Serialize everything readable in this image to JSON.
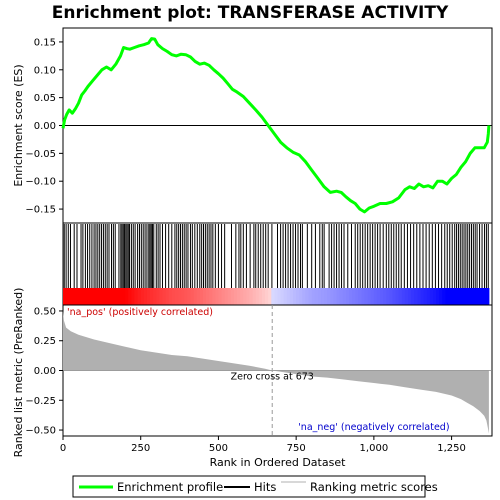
{
  "chart_data": {
    "type": "line",
    "title": "Enrichment plot: TRANSFERASE ACTIVITY",
    "xlabel": "Rank in Ordered Dataset",
    "xlim": [
      0,
      1380
    ],
    "xticks": [
      0,
      250,
      500,
      750,
      1000,
      1250
    ],
    "xtick_labels": [
      "0",
      "250",
      "500",
      "750",
      "1,000",
      "1,250"
    ],
    "panels": {
      "enrichment": {
        "ylabel": "Enrichment score (ES)",
        "ylim": [
          -0.175,
          0.175
        ],
        "yticks": [
          -0.15,
          -0.1,
          -0.05,
          0.0,
          0.05,
          0.1,
          0.15
        ],
        "ytick_labels": [
          "−0.15",
          "−0.10",
          "−0.05",
          "0.00",
          "0.05",
          "0.10",
          "0.15"
        ],
        "series": [
          {
            "name": "Enrichment profile",
            "color": "#00ff00",
            "x": [
              0,
              5,
              12,
              20,
              30,
              40,
              50,
              60,
              70,
              80,
              95,
              110,
              125,
              140,
              155,
              170,
              185,
              195,
              205,
              215,
              230,
              245,
              260,
              275,
              285,
              295,
              305,
              320,
              335,
              350,
              365,
              380,
              395,
              410,
              425,
              440,
              455,
              470,
              485,
              500,
              515,
              530,
              545,
              560,
              580,
              600,
              620,
              640,
              660,
              680,
              700,
              720,
              740,
              760,
              780,
              800,
              820,
              840,
              860,
              880,
              895,
              910,
              925,
              940,
              955,
              970,
              985,
              1000,
              1020,
              1040,
              1060,
              1080,
              1100,
              1115,
              1130,
              1145,
              1160,
              1175,
              1190,
              1205,
              1220,
              1235,
              1250,
              1265,
              1280,
              1295,
              1310,
              1325,
              1340,
              1355,
              1365,
              1368,
              1370
            ],
            "y": [
              -0.005,
              0.01,
              0.02,
              0.028,
              0.022,
              0.03,
              0.04,
              0.055,
              0.062,
              0.07,
              0.08,
              0.09,
              0.1,
              0.105,
              0.1,
              0.11,
              0.125,
              0.14,
              0.138,
              0.137,
              0.14,
              0.143,
              0.145,
              0.148,
              0.156,
              0.155,
              0.145,
              0.138,
              0.133,
              0.127,
              0.125,
              0.128,
              0.127,
              0.123,
              0.115,
              0.11,
              0.112,
              0.108,
              0.1,
              0.093,
              0.085,
              0.075,
              0.065,
              0.06,
              0.052,
              0.04,
              0.028,
              0.015,
              0.0,
              -0.015,
              -0.03,
              -0.04,
              -0.048,
              -0.053,
              -0.065,
              -0.08,
              -0.095,
              -0.11,
              -0.12,
              -0.118,
              -0.12,
              -0.128,
              -0.135,
              -0.14,
              -0.15,
              -0.155,
              -0.148,
              -0.145,
              -0.14,
              -0.14,
              -0.137,
              -0.13,
              -0.115,
              -0.11,
              -0.113,
              -0.105,
              -0.11,
              -0.108,
              -0.112,
              -0.1,
              -0.1,
              -0.105,
              -0.095,
              -0.088,
              -0.075,
              -0.065,
              -0.05,
              -0.04,
              -0.04,
              -0.04,
              -0.03,
              -0.015,
              0.0
            ]
          }
        ]
      },
      "hits": {
        "name": "Hits",
        "positions": [
          4,
          10,
          17,
          24,
          36,
          45,
          58,
          64,
          72,
          79,
          86,
          93,
          100,
          106,
          112,
          118,
          124,
          130,
          136,
          142,
          148,
          156,
          162,
          168,
          180,
          186,
          190,
          194,
          198,
          202,
          206,
          210,
          214,
          220,
          226,
          232,
          240,
          246,
          252,
          258,
          264,
          270,
          276,
          280,
          284,
          288,
          292,
          300,
          306,
          312,
          320,
          330,
          340,
          350,
          360,
          366,
          372,
          378,
          384,
          390,
          396,
          402,
          410,
          416,
          424,
          432,
          440,
          446,
          452,
          458,
          464,
          470,
          476,
          482,
          490,
          500,
          510,
          520,
          542,
          556,
          566,
          572,
          580,
          590,
          602,
          614,
          620,
          628,
          636,
          644,
          652,
          660,
          672,
          690,
          700,
          708,
          716,
          724,
          732,
          740,
          748,
          756,
          764,
          770,
          786,
          800,
          812,
          826,
          834,
          840,
          856,
          864,
          872,
          880,
          888,
          896,
          904,
          916,
          928,
          940,
          948,
          956,
          964,
          972,
          980,
          988,
          996,
          1004,
          1012,
          1020,
          1030,
          1040,
          1048,
          1056,
          1064,
          1072,
          1080,
          1088,
          1098,
          1108,
          1118,
          1128,
          1138,
          1148,
          1158,
          1168,
          1178,
          1188,
          1198,
          1208,
          1218,
          1228,
          1236,
          1244,
          1252,
          1260,
          1266,
          1272,
          1278,
          1284,
          1290,
          1296,
          1302,
          1308,
          1314,
          1320,
          1326,
          1332,
          1340,
          1348,
          1356,
          1362,
          1368
        ]
      },
      "ranking": {
        "name": "Ranking metric scores",
        "ylabel": "Ranked list metric (PreRanked)",
        "ylim": [
          -0.55,
          0.55
        ],
        "yticks": [
          -0.5,
          -0.25,
          0.0,
          0.25,
          0.5
        ],
        "ytick_labels": [
          "−0.50",
          "−0.25",
          "0.00",
          "0.25",
          "0.50"
        ],
        "color": "#b0b0b0",
        "x": [
          0,
          3,
          10,
          25,
          50,
          100,
          150,
          200,
          250,
          300,
          350,
          400,
          450,
          500,
          550,
          600,
          650,
          673,
          700,
          750,
          800,
          850,
          900,
          950,
          1000,
          1050,
          1100,
          1150,
          1200,
          1250,
          1280,
          1300,
          1320,
          1340,
          1355,
          1362,
          1366,
          1370
        ],
        "y": [
          0.5,
          0.42,
          0.36,
          0.33,
          0.3,
          0.26,
          0.23,
          0.2,
          0.17,
          0.15,
          0.13,
          0.12,
          0.1,
          0.08,
          0.06,
          0.04,
          0.015,
          0.0,
          -0.01,
          -0.03,
          -0.05,
          -0.06,
          -0.075,
          -0.09,
          -0.105,
          -0.12,
          -0.14,
          -0.16,
          -0.18,
          -0.21,
          -0.24,
          -0.27,
          -0.3,
          -0.34,
          -0.38,
          -0.42,
          -0.47,
          -0.53
        ]
      }
    },
    "annotations": {
      "na_pos": "'na_pos' (positively correlated)",
      "na_neg": "'na_neg' (negatively correlated)",
      "zero_cross": "Zero cross at 673",
      "zero_cross_x": 673
    },
    "legend": {
      "placement": "bottom",
      "items": [
        {
          "label": "Enrichment profile",
          "color": "#00ff00"
        },
        {
          "label": "Hits",
          "color": "#000000"
        },
        {
          "label": "Ranking metric scores",
          "color": "#b0b0b0"
        }
      ]
    },
    "colors": {
      "na_pos_label": "#cc0000",
      "na_neg_label": "#0000cc",
      "heat_positive": "#ff0000",
      "heat_negative": "#0000ff"
    }
  }
}
